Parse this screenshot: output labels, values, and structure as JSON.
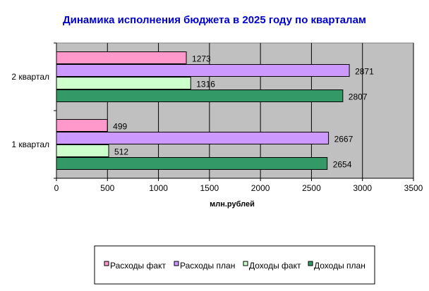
{
  "chart_data": {
    "type": "bar",
    "orientation": "horizontal",
    "title": "Динамика исполнения бюджета в 2025 году  по кварталам",
    "title_color": "#0000CC",
    "xlabel": "млн.рублей",
    "ylabel": "",
    "categories": [
      "1 квартал",
      "2 квартал"
    ],
    "series": [
      {
        "name": "Расходы факт",
        "values": [
          499,
          1273
        ],
        "color": "#FF99CC"
      },
      {
        "name": "Расходы план",
        "values": [
          2667,
          2871
        ],
        "color": "#CC99FF"
      },
      {
        "name": "Доходы факт",
        "values": [
          512,
          1316
        ],
        "color": "#CCFFCC"
      },
      {
        "name": "Доходы план",
        "values": [
          2654,
          2807
        ],
        "color": "#339966"
      }
    ],
    "xlim": [
      0,
      3500
    ],
    "xticks": [
      0,
      500,
      1000,
      1500,
      2000,
      2500,
      3000,
      3500
    ],
    "grid": true,
    "plot_background": "#C0C0C0",
    "legend_position": "bottom"
  }
}
